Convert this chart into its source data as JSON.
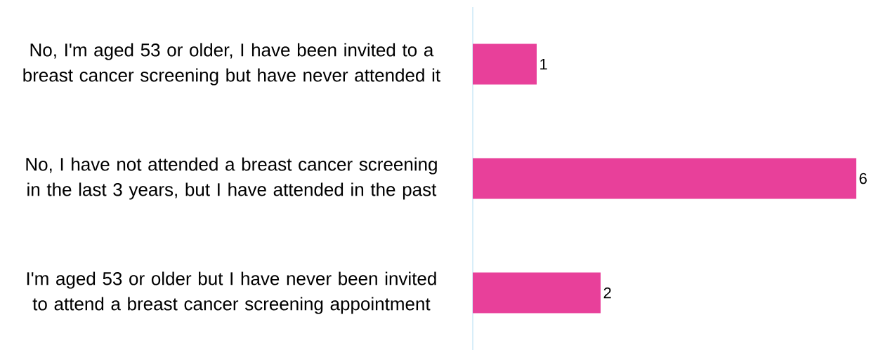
{
  "chart_data": {
    "type": "bar",
    "orientation": "horizontal",
    "categories": [
      "No, I'm aged 53 or older, I have been invited to a breast cancer screening but have never attended it",
      "No, I have not attended a breast cancer screening in the last 3 years, but I have attended in the past",
      "I'm aged 53 or older but I have never been invited to attend a breast cancer screening appointment"
    ],
    "values": [
      1,
      6,
      2
    ],
    "color": "#e8409a",
    "data_labels": true
  }
}
